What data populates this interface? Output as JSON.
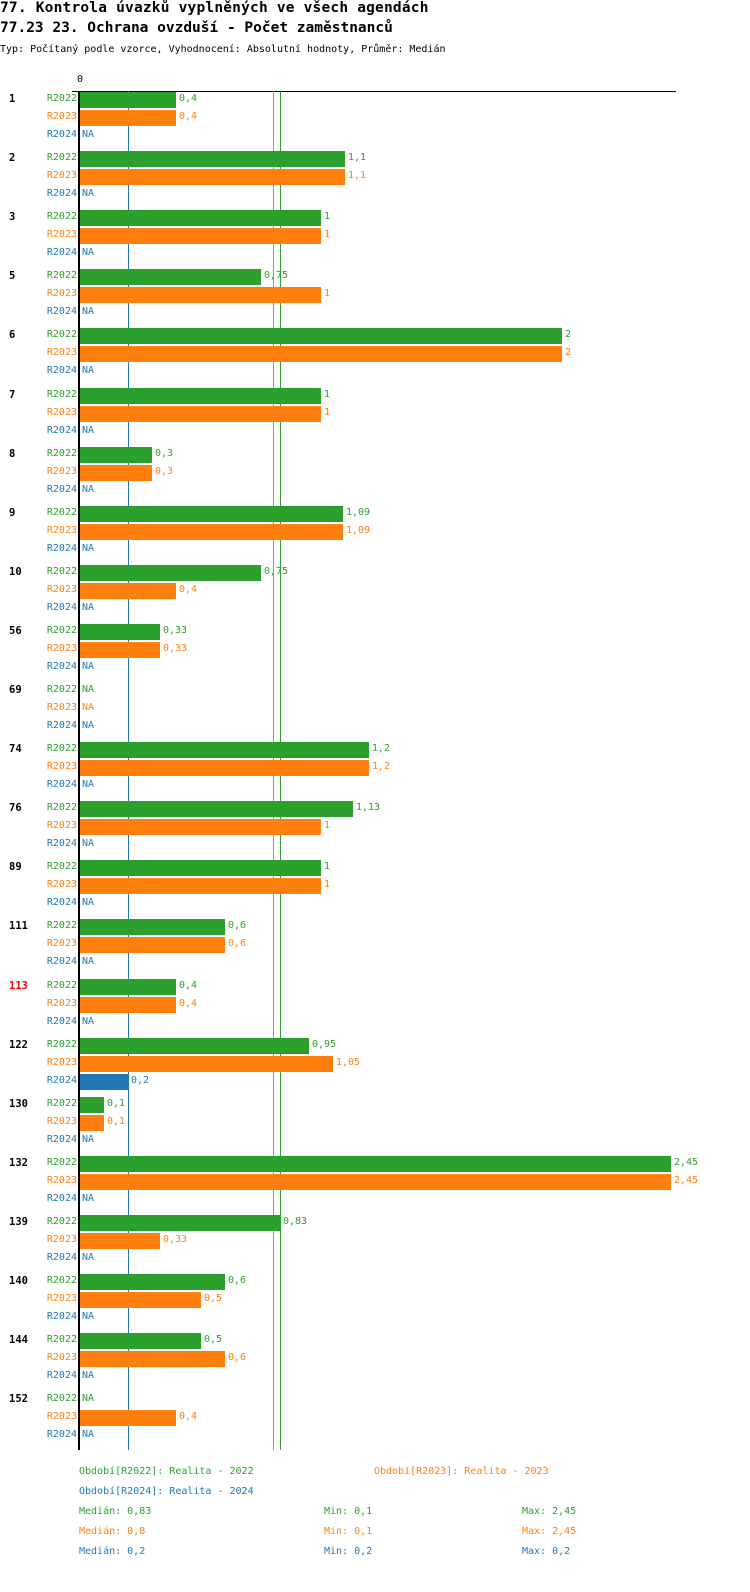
{
  "header": {
    "title": "77. Kontrola úvazků vyplněných ve všech agendách",
    "subtitle": "77.23 23. Ochrana ovzduší - Počet zaměstnanců",
    "info": "Typ: Počítaný podle vzorce, Vyhodnocení: Absolutní hodnoty, Průměr: Medián"
  },
  "chart_data": {
    "type": "bar",
    "orientation": "horizontal",
    "axis_zero_label": "0",
    "xlim": [
      0,
      2.45
    ],
    "colors": {
      "R2022": "#2ca02c",
      "R2023": "#ff7f0e",
      "R2024": "#1f77b4",
      "highlight": "#ff0000"
    },
    "series_names": [
      "R2022",
      "R2023",
      "R2024"
    ],
    "groups": [
      {
        "label": "1",
        "values": [
          "0,4",
          "0,4",
          "NA"
        ]
      },
      {
        "label": "2",
        "values": [
          "1,1",
          "1,1",
          "NA"
        ]
      },
      {
        "label": "3",
        "values": [
          "1",
          "1",
          "NA"
        ]
      },
      {
        "label": "5",
        "values": [
          "0,75",
          "1",
          "NA"
        ]
      },
      {
        "label": "6",
        "values": [
          "2",
          "2",
          "NA"
        ]
      },
      {
        "label": "7",
        "values": [
          "1",
          "1",
          "NA"
        ]
      },
      {
        "label": "8",
        "values": [
          "0,3",
          "0,3",
          "NA"
        ]
      },
      {
        "label": "9",
        "values": [
          "1,09",
          "1,09",
          "NA"
        ]
      },
      {
        "label": "10",
        "values": [
          "0,75",
          "0,4",
          "NA"
        ]
      },
      {
        "label": "56",
        "values": [
          "0,33",
          "0,33",
          "NA"
        ]
      },
      {
        "label": "69",
        "values": [
          "NA",
          "NA",
          "NA"
        ]
      },
      {
        "label": "74",
        "values": [
          "1,2",
          "1,2",
          "NA"
        ]
      },
      {
        "label": "76",
        "values": [
          "1,13",
          "1",
          "NA"
        ]
      },
      {
        "label": "89",
        "values": [
          "1",
          "1",
          "NA"
        ]
      },
      {
        "label": "111",
        "values": [
          "0,6",
          "0,6",
          "NA"
        ]
      },
      {
        "label": "113",
        "values": [
          "0,4",
          "0,4",
          "NA"
        ],
        "highlight": true
      },
      {
        "label": "122",
        "values": [
          "0,95",
          "1,05",
          "0,2"
        ]
      },
      {
        "label": "130",
        "values": [
          "0,1",
          "0,1",
          "NA"
        ]
      },
      {
        "label": "132",
        "values": [
          "2,45",
          "2,45",
          "NA"
        ]
      },
      {
        "label": "139",
        "values": [
          "0,83",
          "0,33",
          "NA"
        ]
      },
      {
        "label": "140",
        "values": [
          "0,6",
          "0,5",
          "NA"
        ]
      },
      {
        "label": "144",
        "values": [
          "0,5",
          "0,6",
          "NA"
        ]
      },
      {
        "label": "152",
        "values": [
          "NA",
          "0,4",
          "NA"
        ]
      }
    ],
    "medians": [
      0.83,
      0.8,
      0.2
    ]
  },
  "legend": {
    "r2022": "Období[R2022]: Realita - 2022",
    "r2023": "Období[R2023]: Realita - 2023",
    "r2024": "Období[R2024]: Realita - 2024"
  },
  "stats": [
    {
      "median": "Medián: 0,83",
      "min": "Min: 0,1",
      "max": "Max: 2,45"
    },
    {
      "median": "Medián: 0,8",
      "min": "Min: 0,1",
      "max": "Max: 2,45"
    },
    {
      "median": "Medián: 0,2",
      "min": "Min: 0,2",
      "max": "Max: 0,2"
    }
  ]
}
